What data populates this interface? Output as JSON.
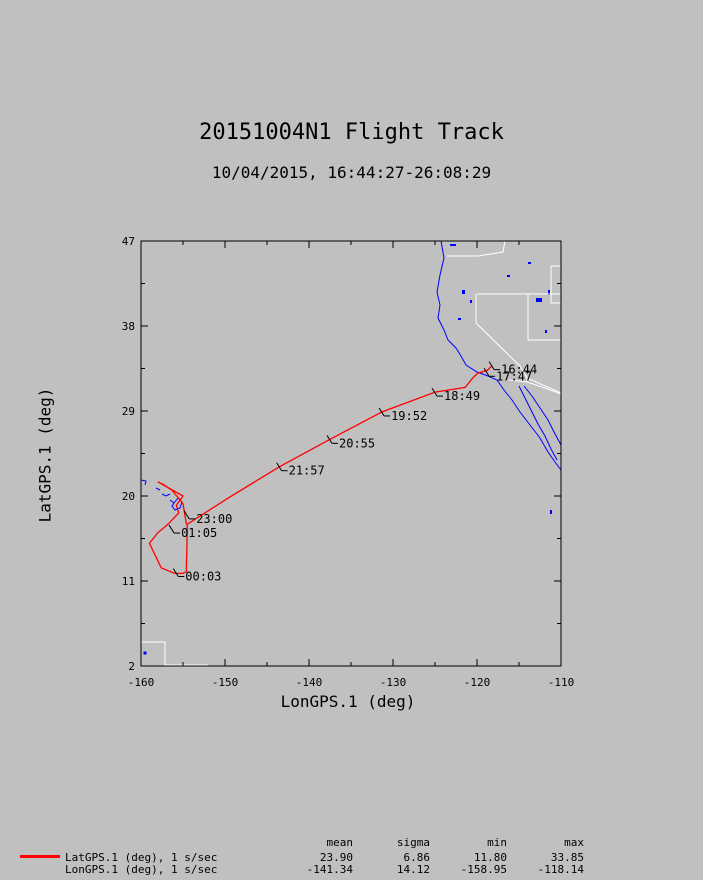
{
  "chart_data": {
    "type": "line",
    "title": "20151004N1 Flight Track",
    "subtitle": "10/04/2015, 16:44:27-26:08:29",
    "xlabel": "LonGPS.1 (deg)",
    "ylabel": "LatGPS.1 (deg)",
    "xlim": [
      -160,
      -110
    ],
    "ylim": [
      2,
      47
    ],
    "xticks": [
      -160,
      -150,
      -140,
      -130,
      -120,
      -110
    ],
    "yticks": [
      2,
      11,
      20,
      29,
      38,
      47
    ],
    "grid": false,
    "series": [
      {
        "name": "LatGPS.1 (deg), 1 s/sec",
        "color": "#ff0000",
        "x": [
          -118.2,
          -118.8,
          -119.9,
          -120.5,
          -121.4,
          -125.0,
          -131.3,
          -137.5,
          -143.5,
          -149.6,
          -154.5,
          -154.5,
          -154.6,
          -154.6,
          -155.0,
          -156.0,
          -157.6,
          -159.0,
          -158.0,
          -156.8,
          -155.5,
          -155.8,
          -155.0,
          -157.0,
          -158.0,
          -157.3,
          -156.3,
          -155.0,
          -154.6
        ],
        "y": [
          33.8,
          33.3,
          33.0,
          32.5,
          31.5,
          31.0,
          28.9,
          26.0,
          23.1,
          19.8,
          17.0,
          16.0,
          12.5,
          12.0,
          11.8,
          11.8,
          12.4,
          15.0,
          16.1,
          17.0,
          18.2,
          19.0,
          20.0,
          21.0,
          21.5,
          21.2,
          20.6,
          19.2,
          17.0
        ]
      }
    ],
    "time_labels": [
      {
        "text": "16:44",
        "lon": -118.2,
        "lat": 33.8
      },
      {
        "text": "17:47",
        "lon": -118.8,
        "lat": 33.1
      },
      {
        "text": "18:49",
        "lon": -125.0,
        "lat": 31.0
      },
      {
        "text": "19:52",
        "lon": -131.3,
        "lat": 28.9
      },
      {
        "text": "20:55",
        "lon": -137.5,
        "lat": 26.0
      },
      {
        "text": "21:57",
        "lon": -143.5,
        "lat": 23.1
      },
      {
        "text": "23:00",
        "lon": -154.5,
        "lat": 18.0
      },
      {
        "text": "01:05",
        "lon": -156.3,
        "lat": 16.5
      },
      {
        "text": "00:03",
        "lon": -155.8,
        "lat": 11.9
      }
    ]
  },
  "legend": {
    "entries": [
      {
        "label": "LatGPS.1 (deg), 1 s/sec",
        "color": "#ff0000"
      },
      {
        "label": "LonGPS.1 (deg), 1 s/sec",
        "color": ""
      }
    ]
  },
  "stats": {
    "headers": [
      "mean",
      "sigma",
      "min",
      "max"
    ],
    "rows": [
      [
        "23.90",
        "6.86",
        "11.80",
        "33.85"
      ],
      [
        "-141.34",
        "14.12",
        "-158.95",
        "-118.14"
      ]
    ]
  },
  "colors": {
    "background": "#c0c0c0",
    "track": "#ff0000",
    "coastline": "#0000ff",
    "borders": "#ffffff"
  }
}
